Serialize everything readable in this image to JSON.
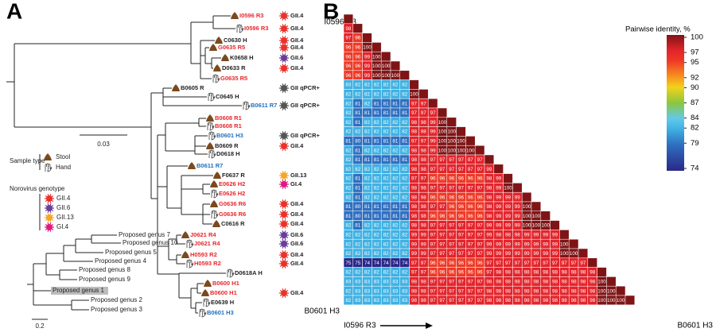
{
  "panel_a": {
    "letter": "A",
    "tree": {
      "scale": "0.03",
      "leaves": [
        {
          "label": "I0596 R3",
          "color": "#e8262b",
          "sample": "stool",
          "genotype": "GII.4"
        },
        {
          "label": "I0596 R3",
          "color": "#e8262b",
          "sample": "hand",
          "genotype": "GII.4"
        },
        {
          "label": "C0630 H",
          "color": "#222222",
          "sample": "stool",
          "genotype": "GII.4"
        },
        {
          "label": "G0635 R5",
          "color": "#e8262b",
          "sample": "stool",
          "genotype": "GII.4"
        },
        {
          "label": "K0658 H",
          "color": "#222222",
          "sample": "stool",
          "genotype": "GII.6"
        },
        {
          "label": "D0633 R",
          "color": "#222222",
          "sample": "stool",
          "genotype": "GII.4"
        },
        {
          "label": "G0635 R5",
          "color": "#e8262b",
          "sample": "hand"
        },
        {
          "label": "B0605 R",
          "color": "#222222",
          "sample": "stool",
          "genotype": "GII qPCR+"
        },
        {
          "label": "C0645 H",
          "color": "#222222",
          "sample": "hand"
        },
        {
          "label": "B0611 R7",
          "color": "#1f6fc0",
          "sample": "hand",
          "genotype": "GII qPCR+"
        },
        {
          "label": "B0608 R1",
          "color": "#e8262b",
          "sample": "stool"
        },
        {
          "label": "B0608 R1",
          "color": "#e8262b",
          "sample": "hand"
        },
        {
          "label": "B0601 H3",
          "color": "#1f6fc0",
          "sample": "hand",
          "genotype": "GII qPCR+"
        },
        {
          "label": "B0609 R",
          "color": "#222222",
          "sample": "stool",
          "genotype": "GII.4"
        },
        {
          "label": "D0618 H",
          "color": "#222222",
          "sample": "hand"
        },
        {
          "label": "B0611 R7",
          "color": "#1f6fc0",
          "sample": "stool"
        },
        {
          "label": "F0637 R",
          "color": "#222222",
          "sample": "stool",
          "genotype": "GII.13"
        },
        {
          "label": "E0626 H2",
          "color": "#e8262b",
          "sample": "stool",
          "genotype": "GI.4"
        },
        {
          "label": "E0626 H2",
          "color": "#e8262b",
          "sample": "hand"
        },
        {
          "label": "G0636 R6",
          "color": "#e8262b",
          "sample": "stool",
          "genotype": "GII.4"
        },
        {
          "label": "G0636 R6",
          "color": "#e8262b",
          "sample": "hand",
          "genotype": "GII.4"
        },
        {
          "label": "C0616 R",
          "color": "#222222",
          "sample": "stool",
          "genotype": "GII.4"
        },
        {
          "label": "J0621 R4",
          "color": "#e8262b",
          "sample": "stool",
          "genotype": "GII.6"
        },
        {
          "label": "J0621 R4",
          "color": "#e8262b",
          "sample": "hand",
          "genotype": "GII.6"
        },
        {
          "label": "H0593 R2",
          "color": "#e8262b",
          "sample": "stool",
          "genotype": "GII.4"
        },
        {
          "label": "H0593 R2",
          "color": "#e8262b",
          "sample": "hand",
          "genotype": "GII.4"
        },
        {
          "label": "D0618A H",
          "color": "#222222",
          "sample": "hand"
        },
        {
          "label": "B0600 H1",
          "color": "#e8262b",
          "sample": "stool"
        },
        {
          "label": "B0600 H1",
          "color": "#e8262b",
          "sample": "stool",
          "genotype": "GII.4"
        },
        {
          "label": "E0639 H",
          "color": "#222222",
          "sample": "hand"
        },
        {
          "label": "B0601 H3",
          "color": "#1f6fc0",
          "sample": "hand"
        }
      ]
    },
    "legend": {
      "sample_title": "Sample type",
      "stool": "Stool",
      "hand": "Hand",
      "genotype_title": "Norovirus genotype",
      "genotypes": [
        {
          "label": "GII.4",
          "color": "#e8322b"
        },
        {
          "label": "GII.6",
          "color": "#6a3d9a"
        },
        {
          "label": "GII.13",
          "color": "#f5a623"
        },
        {
          "label": "GI.4",
          "color": "#e0197f"
        }
      ]
    },
    "inset": {
      "scale": "0.2",
      "leaves": [
        "Proposed genus 7",
        "Proposed genus 10",
        "Proposed genus 5",
        "Proposed genus 4",
        "Proposed genus 8",
        "Proposed genus 9",
        "Proposed genus 1",
        "Proposed genus 2",
        "Proposed genus 3"
      ]
    }
  },
  "panel_b": {
    "letter": "B",
    "top_label": "I0596 R3",
    "left_bottom_label": "B0601 H3",
    "bottom_label": "I0596 R3",
    "right_label": "B0601 H3",
    "legend": {
      "title": "Pairwise identity, %",
      "ticks": [
        100,
        97,
        95,
        92,
        90,
        87,
        84,
        82,
        79,
        74
      ],
      "colors": [
        "#7f1416",
        "#e3242b",
        "#ee3a26",
        "#f7931e",
        "#f2d21b",
        "#8cc63f",
        "#62c9ea",
        "#3fb1e3",
        "#2f6fc0",
        "#2a2888"
      ]
    },
    "rows": [
      [],
      [
        98
      ],
      [
        97,
        96
      ],
      [
        96,
        96,
        100
      ],
      [
        96,
        96,
        99,
        100
      ],
      [
        96,
        96,
        99,
        100,
        100
      ],
      [
        96,
        96,
        99,
        100,
        100,
        100
      ],
      [
        83,
        82,
        82,
        82,
        82,
        82,
        82
      ],
      [
        82,
        82,
        82,
        82,
        82,
        82,
        82,
        100
      ],
      [
        82,
        81,
        82,
        81,
        81,
        81,
        81,
        97,
        97
      ],
      [
        82,
        81,
        81,
        81,
        81,
        81,
        81,
        97,
        97,
        97
      ],
      [
        82,
        81,
        82,
        82,
        82,
        82,
        82,
        98,
        98,
        99,
        100
      ],
      [
        82,
        82,
        82,
        82,
        82,
        82,
        82,
        98,
        98,
        99,
        100,
        100
      ],
      [
        81,
        80,
        81,
        81,
        81,
        81,
        81,
        97,
        97,
        99,
        100,
        100,
        100
      ],
      [
        82,
        81,
        82,
        82,
        82,
        82,
        82,
        98,
        98,
        99,
        100,
        100,
        100,
        100
      ],
      [
        82,
        81,
        81,
        81,
        81,
        81,
        81,
        98,
        98,
        97,
        97,
        97,
        97,
        97,
        97
      ],
      [
        82,
        82,
        82,
        82,
        82,
        82,
        82,
        98,
        98,
        97,
        97,
        97,
        97,
        97,
        97,
        99
      ],
      [
        82,
        81,
        82,
        82,
        82,
        82,
        82,
        97,
        97,
        96,
        96,
        96,
        96,
        96,
        96,
        98,
        99
      ],
      [
        82,
        81,
        82,
        82,
        82,
        82,
        82,
        98,
        98,
        97,
        97,
        97,
        97,
        97,
        97,
        98,
        99,
        100
      ],
      [
        82,
        81,
        82,
        82,
        82,
        82,
        82,
        98,
        98,
        96,
        96,
        96,
        96,
        96,
        96,
        98,
        99,
        99,
        99
      ],
      [
        81,
        80,
        81,
        81,
        81,
        81,
        81,
        98,
        98,
        97,
        97,
        96,
        96,
        96,
        96,
        98,
        99,
        99,
        99,
        100
      ],
      [
        81,
        80,
        81,
        81,
        81,
        81,
        81,
        98,
        98,
        96,
        96,
        96,
        96,
        96,
        96,
        98,
        99,
        99,
        99,
        100,
        100
      ],
      [
        82,
        81,
        82,
        82,
        82,
        82,
        82,
        98,
        98,
        97,
        97,
        97,
        97,
        97,
        97,
        99,
        99,
        99,
        99,
        100,
        100,
        100
      ],
      [
        82,
        82,
        82,
        82,
        82,
        82,
        82,
        99,
        99,
        97,
        97,
        97,
        97,
        97,
        97,
        99,
        98,
        98,
        98,
        99,
        99,
        99,
        99
      ],
      [
        82,
        82,
        82,
        82,
        82,
        82,
        82,
        99,
        99,
        97,
        97,
        97,
        97,
        97,
        97,
        99,
        99,
        99,
        99,
        99,
        99,
        99,
        99,
        100
      ],
      [
        82,
        82,
        82,
        82,
        82,
        82,
        82,
        99,
        99,
        97,
        97,
        97,
        97,
        97,
        97,
        99,
        99,
        99,
        99,
        99,
        99,
        99,
        99,
        100,
        100
      ],
      [
        75,
        75,
        74,
        74,
        74,
        74,
        74,
        97,
        97,
        96,
        96,
        96,
        96,
        96,
        96,
        97,
        97,
        97,
        97,
        97,
        97,
        97,
        97,
        97,
        97,
        97
      ],
      [
        82,
        82,
        82,
        82,
        82,
        82,
        82,
        97,
        97,
        96,
        96,
        96,
        96,
        96,
        96,
        97,
        98,
        98,
        98,
        98,
        98,
        98,
        98,
        98,
        98,
        98,
        98
      ],
      [
        83,
        83,
        83,
        83,
        83,
        83,
        83,
        98,
        98,
        97,
        97,
        97,
        97,
        97,
        97,
        98,
        98,
        98,
        98,
        98,
        98,
        98,
        98,
        98,
        98,
        98,
        98,
        100
      ],
      [
        82,
        83,
        83,
        83,
        83,
        83,
        83,
        98,
        98,
        97,
        97,
        97,
        97,
        97,
        97,
        98,
        98,
        98,
        98,
        98,
        98,
        98,
        98,
        98,
        98,
        98,
        98,
        100,
        100
      ],
      [
        82,
        83,
        83,
        83,
        83,
        83,
        83,
        98,
        98,
        97,
        97,
        97,
        97,
        97,
        97,
        98,
        98,
        98,
        98,
        98,
        98,
        98,
        98,
        98,
        98,
        98,
        98,
        100,
        100,
        100
      ]
    ]
  }
}
